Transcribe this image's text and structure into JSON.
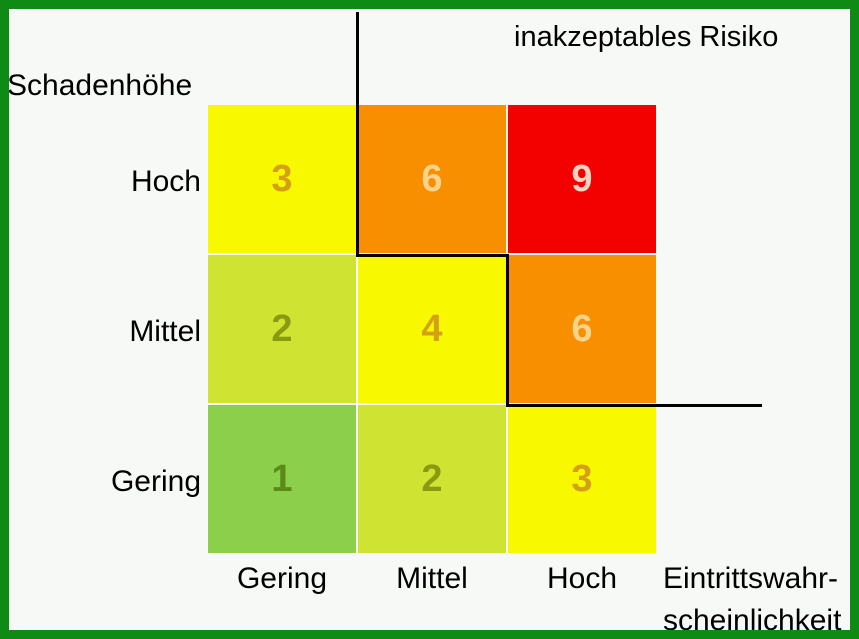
{
  "title": "inakzeptables Risiko",
  "y_axis_label": "Schadenhöhe",
  "x_axis_label_line1": "Eintrittswahr-",
  "x_axis_label_line2": "scheinlichkeit",
  "rows": [
    "Hoch",
    "Mittel",
    "Gering"
  ],
  "columns": [
    "Gering",
    "Mittel",
    "Hoch"
  ],
  "cells": [
    [
      {
        "value": "3",
        "bg": "#f8f800",
        "fg": "#d4a017"
      },
      {
        "value": "6",
        "bg": "#f78f00",
        "fg": "#f9d48a"
      },
      {
        "value": "9",
        "bg": "#f30000",
        "fg": "#f6d2c0"
      }
    ],
    [
      {
        "value": "2",
        "bg": "#cfe332",
        "fg": "#8a9a10"
      },
      {
        "value": "4",
        "bg": "#f8f800",
        "fg": "#d4a017"
      },
      {
        "value": "6",
        "bg": "#f78f00",
        "fg": "#f9d48a"
      }
    ],
    [
      {
        "value": "1",
        "bg": "#8ccf4a",
        "fg": "#5b8a18"
      },
      {
        "value": "2",
        "bg": "#cfe332",
        "fg": "#8a9a10"
      },
      {
        "value": "3",
        "bg": "#f8f800",
        "fg": "#d4a017"
      }
    ]
  ],
  "colors": {
    "frame": "#0f8a15",
    "background": "#f7f9f6",
    "boundary": "#000000"
  }
}
